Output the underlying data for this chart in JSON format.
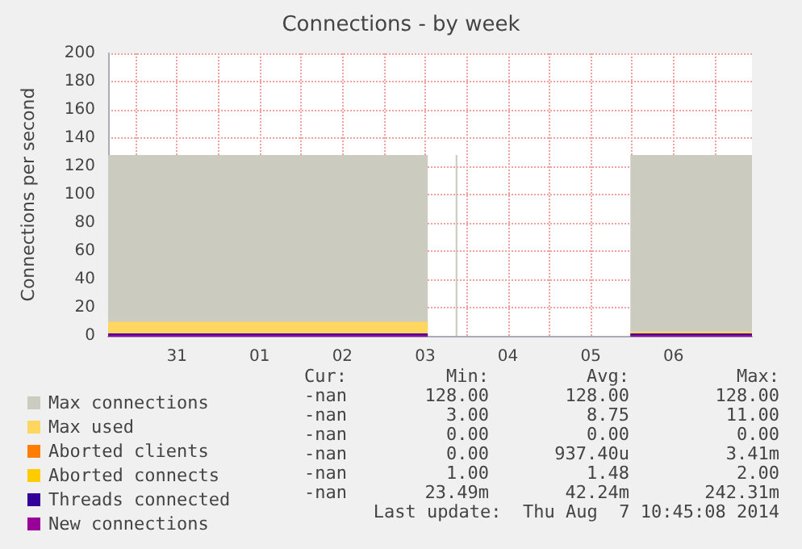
{
  "chart_data": {
    "type": "area",
    "title": "Connections - by week",
    "ylabel": "Connections per second",
    "xlim": [
      "2014-07-30T16:05",
      "2014-08-07T10:45"
    ],
    "xticks": [
      {
        "value": "2014-07-31T00:00",
        "label": null
      },
      {
        "value": "2014-07-31T12:00",
        "label": "31"
      },
      {
        "value": "2014-08-01T00:00",
        "label": null
      },
      {
        "value": "2014-08-01T12:00",
        "label": "01"
      },
      {
        "value": "2014-08-02T00:00",
        "label": null
      },
      {
        "value": "2014-08-02T12:00",
        "label": "02"
      },
      {
        "value": "2014-08-03T00:00",
        "label": null
      },
      {
        "value": "2014-08-03T12:00",
        "label": "03"
      },
      {
        "value": "2014-08-04T00:00",
        "label": null
      },
      {
        "value": "2014-08-04T12:00",
        "label": "04"
      },
      {
        "value": "2014-08-05T00:00",
        "label": null
      },
      {
        "value": "2014-08-05T12:00",
        "label": "05"
      },
      {
        "value": "2014-08-06T00:00",
        "label": null
      },
      {
        "value": "2014-08-06T12:00",
        "label": "06"
      },
      {
        "value": "2014-08-07T00:00",
        "label": null
      }
    ],
    "ylim": [
      0,
      200
    ],
    "yticks": [
      0,
      20,
      40,
      60,
      80,
      100,
      120,
      140,
      160,
      180,
      200
    ],
    "grid": true,
    "legend": "bottom left",
    "x": [
      "2014-07-30T16:05",
      "2014-08-03T12:45",
      "2014-08-03T13:00",
      "2014-08-03T20:50",
      "2014-08-03T21:20",
      "2014-08-03T21:40",
      "2014-08-05T23:30",
      "2014-08-07T10:45"
    ],
    "series": [
      {
        "name": "Max connections",
        "color": "#cccbbf",
        "values": [
          128,
          128,
          null,
          128,
          128,
          null,
          128,
          128
        ]
      },
      {
        "name": "Max used",
        "color": "#ffd660",
        "values": [
          10,
          10,
          null,
          null,
          null,
          null,
          3,
          3
        ]
      },
      {
        "name": "Aborted clients",
        "type": "line",
        "color": "#ff7d00",
        "values": [
          null,
          null,
          null,
          null,
          null,
          null,
          null,
          null
        ]
      },
      {
        "name": "Aborted connects",
        "type": "line",
        "color": "#ffcc00",
        "values": [
          null,
          null,
          null,
          null,
          null,
          null,
          null,
          null
        ]
      },
      {
        "name": "Threads connected",
        "type": "line",
        "color": "#330099",
        "values": [
          1,
          1,
          null,
          null,
          null,
          null,
          1,
          1
        ]
      },
      {
        "name": "New connections",
        "type": "line",
        "color": "#990099",
        "values": [
          0,
          0,
          null,
          null,
          null,
          null,
          0,
          0
        ]
      }
    ],
    "annotations": [
      "Cur:",
      "Min:",
      "Avg:",
      "Max:",
      "-nan",
      "128.00",
      "128.00",
      "128.00",
      "-nan",
      "3.00",
      "8.75",
      "11.00",
      "-nan",
      "0.00",
      "0.00",
      "0.00",
      "-nan",
      "0.00",
      "937.40u",
      "3.41m",
      "-nan",
      "1.00",
      "1.48",
      "2.00",
      "-nan",
      "23.49m",
      "42.24m",
      "242.31m",
      "Last update:  Thu Aug  7 10:45:08 2014"
    ]
  }
}
